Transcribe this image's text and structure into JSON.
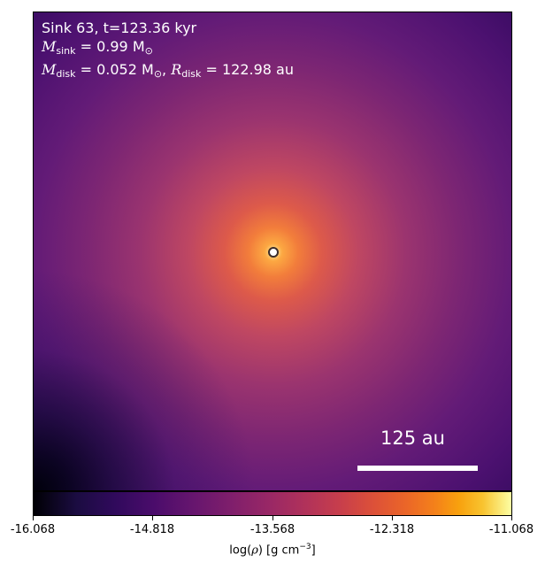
{
  "panel": {
    "sink_label": "Sink 63, t=123.36 kyr",
    "msink_symbol": "M",
    "msink_sub": "sink",
    "msink_value": " = 0.99 M",
    "msink_sun": "⊙",
    "mdisk_symbol": "M",
    "mdisk_sub": "disk",
    "mdisk_value": " = 0.052 M",
    "mdisk_sun": "⊙",
    "mdisk_sep": ", ",
    "rdisk_symbol": "R",
    "rdisk_sub": "disk",
    "rdisk_value": " = 122.98 au",
    "scale_bar_label": "125 au"
  },
  "colorbar": {
    "colormap": "inferno",
    "range": [
      -16.068,
      -11.068
    ],
    "ticks": [
      "-16.068",
      "-14.818",
      "-13.568",
      "-12.318",
      "-11.068"
    ],
    "label_prefix": "log(",
    "label_rho": "ρ",
    "label_mid": ") [g cm",
    "label_exp": "−3",
    "label_suffix": "]"
  }
}
